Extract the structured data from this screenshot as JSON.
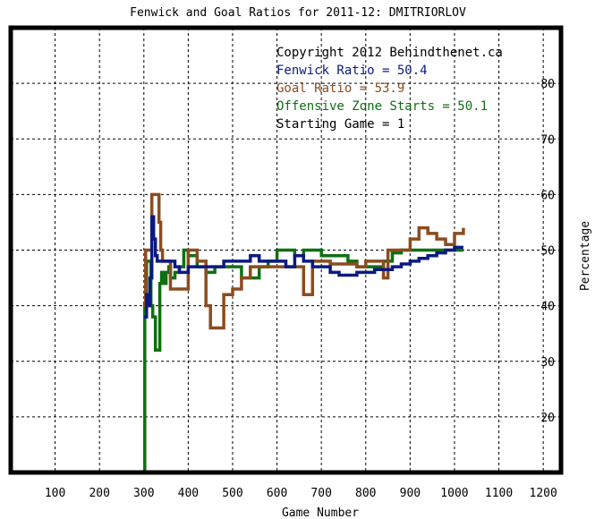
{
  "chart_data": {
    "type": "line",
    "title": "Fenwick and Goal Ratios for 2011-12: DMITRIORLOV",
    "xlabel": "Game Number",
    "ylabel": "Percentage",
    "xlim": [
      0,
      1240
    ],
    "ylim": [
      10,
      90
    ],
    "x_ticks": [
      "100",
      "200",
      "300",
      "400",
      "500",
      "600",
      "700",
      "800",
      "900",
      "1000",
      "1100",
      "1200"
    ],
    "y_ticks": [
      "20",
      "30",
      "40",
      "50",
      "60",
      "70",
      "80"
    ],
    "grid": true,
    "legend_position": "top-right",
    "legend": {
      "copyright": "Copyright 2012 Behindthenet.ca",
      "fenwick": "Fenwick Ratio = 50.4",
      "goal": "Goal Ratio = 53.9",
      "ozone": "Offensive Zone Starts = 50.1",
      "start": "Starting Game = 1"
    },
    "colors": {
      "fenwick": "#0c1a80",
      "goal": "#8b4c1f",
      "ozone": "#0f6f12"
    },
    "series": [
      {
        "key": "fenwick",
        "x": [
          300,
          306,
          310,
          314,
          318,
          322,
          326,
          330,
          336,
          350,
          360,
          370,
          380,
          400,
          420,
          440,
          460,
          480,
          500,
          520,
          540,
          560,
          580,
          600,
          620,
          640,
          660,
          680,
          700,
          720,
          740,
          760,
          780,
          800,
          820,
          840,
          860,
          880,
          900,
          920,
          940,
          960,
          980,
          1000,
          1020
        ],
        "y": [
          38,
          42,
          40,
          45,
          56,
          52,
          49,
          48,
          48,
          48,
          48,
          47,
          46,
          47,
          47,
          47,
          47,
          48,
          48,
          48,
          49,
          48,
          48,
          48,
          47,
          49,
          48,
          47,
          47,
          46,
          45.5,
          45.5,
          46,
          46,
          46.5,
          46.5,
          47,
          47.5,
          48,
          48.5,
          49,
          49.5,
          50,
          50.5,
          50.5
        ]
      },
      {
        "key": "goal",
        "x": [
          300,
          304,
          310,
          318,
          322,
          326,
          330,
          334,
          338,
          342,
          350,
          360,
          370,
          380,
          400,
          420,
          440,
          450,
          460,
          480,
          500,
          520,
          540,
          560,
          580,
          600,
          620,
          640,
          660,
          670,
          680,
          700,
          720,
          740,
          760,
          780,
          800,
          820,
          840,
          850,
          860,
          880,
          900,
          920,
          940,
          960,
          980,
          1000,
          1020
        ],
        "y": [
          40,
          50,
          50,
          60,
          60,
          60,
          60,
          55,
          50,
          48,
          48,
          43,
          43,
          43,
          50,
          48,
          40,
          36,
          36,
          42,
          43,
          45,
          47,
          47,
          47,
          47,
          47,
          47,
          42,
          42,
          48,
          48,
          47.5,
          47.5,
          47.5,
          47,
          48,
          48,
          45,
          50,
          50,
          50,
          52,
          54,
          53,
          52,
          51,
          53,
          54
        ]
      },
      {
        "key": "ozone",
        "x": [
          300,
          302,
          306,
          310,
          316,
          320,
          326,
          330,
          336,
          340,
          346,
          350,
          356,
          360,
          370,
          380,
          390,
          400,
          420,
          440,
          460,
          480,
          500,
          520,
          540,
          560,
          580,
          600,
          620,
          640,
          660,
          680,
          700,
          720,
          740,
          760,
          780,
          800,
          820,
          840,
          860,
          880,
          900,
          920,
          940,
          960,
          980,
          1000,
          1020
        ],
        "y": [
          10,
          40,
          48,
          48,
          40,
          38,
          32,
          32,
          44,
          46,
          44,
          46,
          47,
          45,
          46,
          47,
          50,
          49,
          47,
          46,
          47,
          47,
          47,
          45,
          45,
          47,
          48,
          50,
          50,
          49,
          50,
          50,
          49,
          49,
          49,
          48,
          47,
          47,
          47,
          48,
          49.5,
          50,
          50,
          50,
          50,
          50,
          50,
          50,
          50
        ]
      }
    ]
  }
}
